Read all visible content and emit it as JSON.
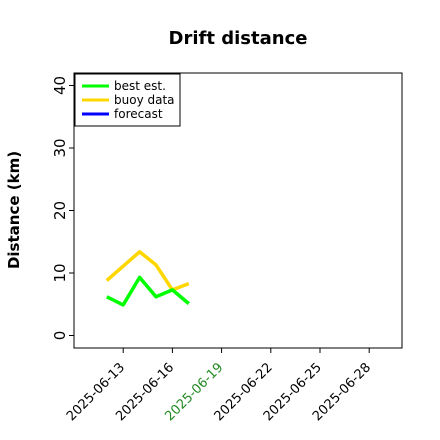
{
  "chart_data": {
    "type": "line",
    "title": "Drift distance",
    "xlabel": "",
    "ylabel": "Distance (km)",
    "xlim": [
      "2025-06-10",
      "2025-06-30"
    ],
    "ylim": [
      -2,
      42
    ],
    "yticks": [
      0,
      10,
      20,
      30,
      40
    ],
    "xticks": [
      "2025-06-13",
      "2025-06-16",
      "2025-06-19",
      "2025-06-22",
      "2025-06-25",
      "2025-06-28"
    ],
    "highlight_xtick": "2025-06-19",
    "highlight_color": "#228b22",
    "grid": false,
    "legend": {
      "placement": "top-left",
      "entries": [
        "best est.",
        "buoy data",
        "forecast"
      ]
    },
    "series": [
      {
        "name": "best est.",
        "color": "#00ff00",
        "x": [
          "2025-06-12",
          "2025-06-13",
          "2025-06-14",
          "2025-06-15",
          "2025-06-16",
          "2025-06-17"
        ],
        "values": [
          6.2,
          4.9,
          9.3,
          6.2,
          7.3,
          5.1
        ]
      },
      {
        "name": "buoy data",
        "color": "#ffd700",
        "x": [
          "2025-06-12",
          "2025-06-14",
          "2025-06-15",
          "2025-06-16",
          "2025-06-17"
        ],
        "values": [
          8.8,
          13.4,
          11.3,
          7.3,
          8.3
        ]
      },
      {
        "name": "forecast",
        "color": "#0000ff",
        "x": [],
        "values": []
      }
    ]
  }
}
